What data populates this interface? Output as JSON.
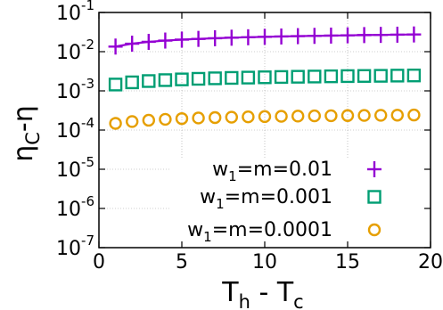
{
  "chart_data": {
    "type": "scatter",
    "xlabel_main": "T",
    "xlabel_sub_h": "h",
    "xlabel_mid": " - T",
    "xlabel_sub_c": "c",
    "ylabel_main": "η",
    "ylabel_sub": "C",
    "ylabel_tail": "-η",
    "xlim": [
      0,
      20
    ],
    "ylim_exponent": [
      -7,
      -1
    ],
    "y_scale": "log",
    "grid": true,
    "legend_position": "bottom-right",
    "x_ticks": [
      "0",
      "5",
      "10",
      "15",
      "20"
    ],
    "y_tick_base": "10",
    "y_tick_exponents": [
      "-7",
      "-6",
      "-5",
      "-4",
      "-3",
      "-2",
      "-1"
    ],
    "x": [
      1,
      2,
      3,
      4,
      5,
      6,
      7,
      8,
      9,
      10,
      11,
      12,
      13,
      14,
      15,
      16,
      17,
      18,
      19
    ],
    "series": [
      {
        "name": "w",
        "name_sub": "1",
        "name_tail": "=m=0.01",
        "marker": "plus",
        "color": "#9400d3",
        "values": [
          0.0135,
          0.016,
          0.0178,
          0.0192,
          0.0203,
          0.0212,
          0.022,
          0.0227,
          0.0233,
          0.0239,
          0.0244,
          0.0249,
          0.0253,
          0.0257,
          0.0261,
          0.0265,
          0.0268,
          0.0271,
          0.0275
        ]
      },
      {
        "name": "w",
        "name_sub": "1",
        "name_tail": "=m=0.001",
        "marker": "square",
        "color": "#009e73",
        "values": [
          0.00145,
          0.00165,
          0.00178,
          0.00188,
          0.00196,
          0.00203,
          0.00209,
          0.00214,
          0.00218,
          0.00222,
          0.00226,
          0.00229,
          0.00232,
          0.00235,
          0.00238,
          0.0024,
          0.00242,
          0.00245,
          0.00247
        ]
      },
      {
        "name": "w",
        "name_sub": "1",
        "name_tail": "=m=0.0001",
        "marker": "circle",
        "color": "#e69f00",
        "values": [
          0.000148,
          0.000165,
          0.000178,
          0.000188,
          0.000196,
          0.000203,
          0.000208,
          0.000213,
          0.000217,
          0.000221,
          0.000224,
          0.000227,
          0.00023,
          0.000232,
          0.000234,
          0.000236,
          0.000238,
          0.00024,
          0.000242
        ]
      }
    ]
  }
}
